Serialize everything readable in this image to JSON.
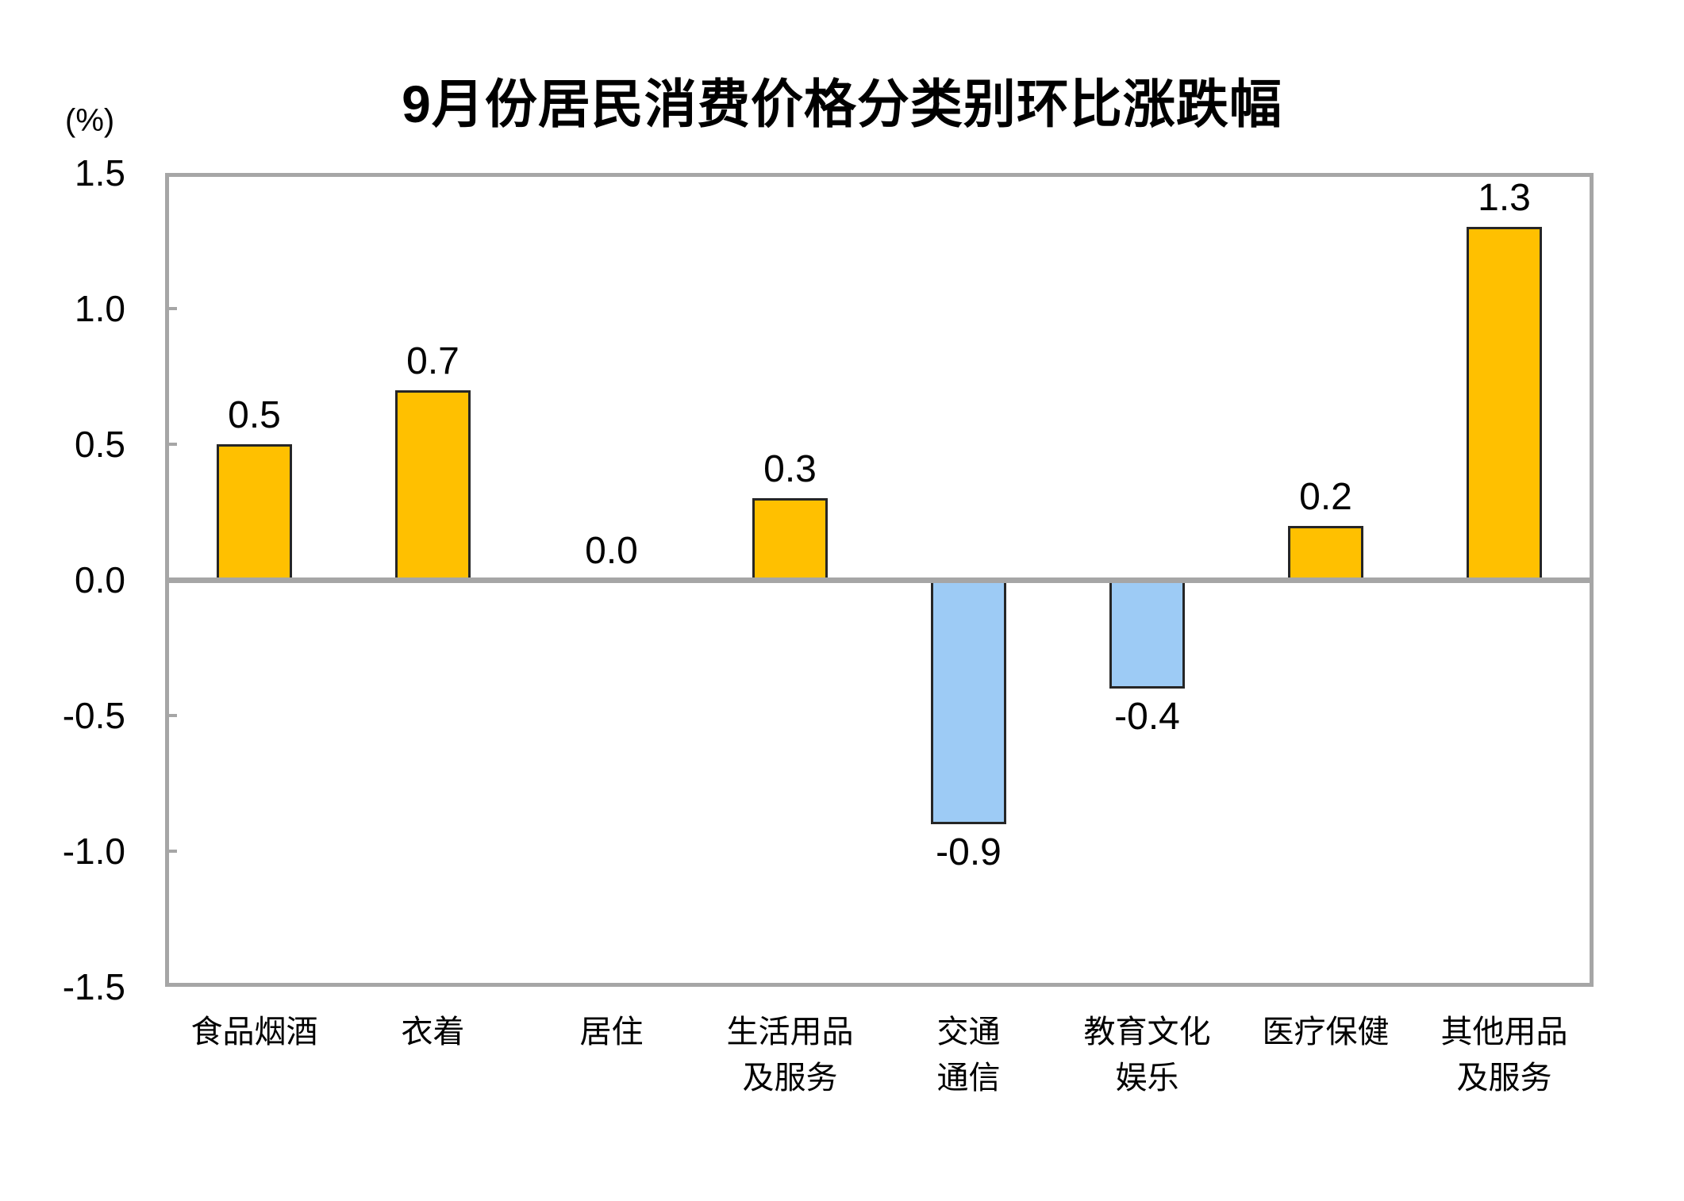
{
  "title": "9月份居民消费价格分类别环比涨跌幅",
  "unit_label": "(%)",
  "chart_data": {
    "type": "bar",
    "title": "9月份居民消费价格分类别环比涨跌幅",
    "xlabel": "",
    "ylabel": "(%)",
    "categories": [
      "食品烟酒",
      "衣着",
      "居住",
      "生活用品及服务",
      "交通通信",
      "教育文化娱乐",
      "医疗保健",
      "其他用品及服务"
    ],
    "category_label_lines": [
      [
        "食品烟酒"
      ],
      [
        "衣着"
      ],
      [
        "居住"
      ],
      [
        "生活用品",
        "及服务"
      ],
      [
        "交通",
        "通信"
      ],
      [
        "教育文化",
        "娱乐"
      ],
      [
        "医疗保健"
      ],
      [
        "其他用品",
        "及服务"
      ]
    ],
    "values": [
      0.5,
      0.7,
      0.0,
      0.3,
      -0.9,
      -0.4,
      0.2,
      1.3
    ],
    "data_labels": [
      "0.5",
      "0.7",
      "0.0",
      "0.3",
      "-0.9",
      "-0.4",
      "0.2",
      "1.3"
    ],
    "ylim": [
      -1.5,
      1.5
    ],
    "yticks": [
      1.5,
      1.0,
      0.5,
      0.0,
      -0.5,
      -1.0,
      -1.5
    ],
    "ytick_labels": [
      "1.5",
      "1.0",
      "0.5",
      "0.0",
      "-0.5",
      "-1.0",
      "-1.5"
    ],
    "grid": false,
    "legend": "none",
    "colors": {
      "positive_bar": "#FFC000",
      "negative_bar": "#9DCBF5",
      "bar_border": "#262626",
      "axis_border": "#A6A6A6",
      "zero_line": "#A6A6A6",
      "tick_mark": "#A6A6A6",
      "text": "#000000",
      "background": "#FFFFFF"
    }
  }
}
